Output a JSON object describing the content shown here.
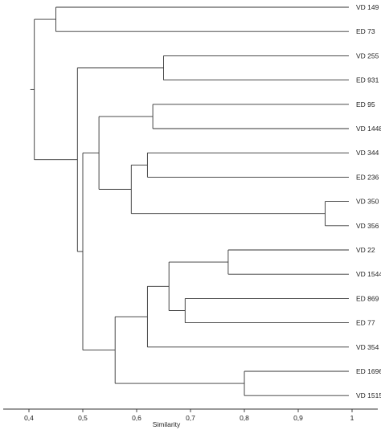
{
  "chart_data": {
    "type": "dendrogram",
    "orientation": "horizontal",
    "leaves": [
      "VD 149",
      "ED 73",
      "VD 255",
      "ED 931",
      "ED 95",
      "VD 1448",
      "VD 344",
      "ED 236",
      "VD 350",
      "VD 356",
      "VD 22",
      "VD 1544",
      "ED 869",
      "ED 77",
      "VD 354",
      "ED 1696",
      "VD 1515"
    ],
    "merges": [
      {
        "id": "c1",
        "left": "VD 149",
        "right": "ED 73",
        "similarity": 0.45
      },
      {
        "id": "c2",
        "left": "VD 255",
        "right": "ED 931",
        "similarity": 0.65
      },
      {
        "id": "c3",
        "left": "ED 95",
        "right": "VD 1448",
        "similarity": 0.63
      },
      {
        "id": "c4",
        "left": "VD 344",
        "right": "ED 236",
        "similarity": 0.62
      },
      {
        "id": "c5",
        "left": "VD 350",
        "right": "VD 356",
        "similarity": 0.95
      },
      {
        "id": "c6",
        "left": "c4",
        "right": "c5",
        "similarity": 0.59
      },
      {
        "id": "c7",
        "left": "c3",
        "right": "c6",
        "similarity": 0.53
      },
      {
        "id": "c8",
        "left": "VD 22",
        "right": "VD 1544",
        "similarity": 0.77
      },
      {
        "id": "c9",
        "left": "ED 869",
        "right": "ED 77",
        "similarity": 0.69
      },
      {
        "id": "c10",
        "left": "c8",
        "right": "c9",
        "similarity": 0.66
      },
      {
        "id": "c11",
        "left": "c10",
        "right": "VD 354",
        "similarity": 0.62
      },
      {
        "id": "c12",
        "left": "ED 1696",
        "right": "VD 1515",
        "similarity": 0.8
      },
      {
        "id": "c13",
        "left": "c11",
        "right": "c12",
        "similarity": 0.56
      },
      {
        "id": "c14",
        "left": "c7",
        "right": "c13",
        "similarity": 0.5
      },
      {
        "id": "c15",
        "left": "c2",
        "right": "c14",
        "similarity": 0.49
      },
      {
        "id": "c16",
        "left": "c1",
        "right": "c15",
        "similarity": 0.41
      }
    ],
    "leaf_similarity": 1.0,
    "xlabel": "Similarity",
    "xlim": [
      0.35,
      1.0
    ],
    "xticks": [
      0.4,
      0.5,
      0.6,
      0.7,
      0.8,
      0.9,
      1.0
    ],
    "xtick_labels": [
      "0,4",
      "0,5",
      "0,6",
      "0,7",
      "0,8",
      "0,9",
      "1"
    ],
    "grid": false
  },
  "colors": {
    "line": "#333333",
    "text": "#222222",
    "background": "#ffffff"
  }
}
